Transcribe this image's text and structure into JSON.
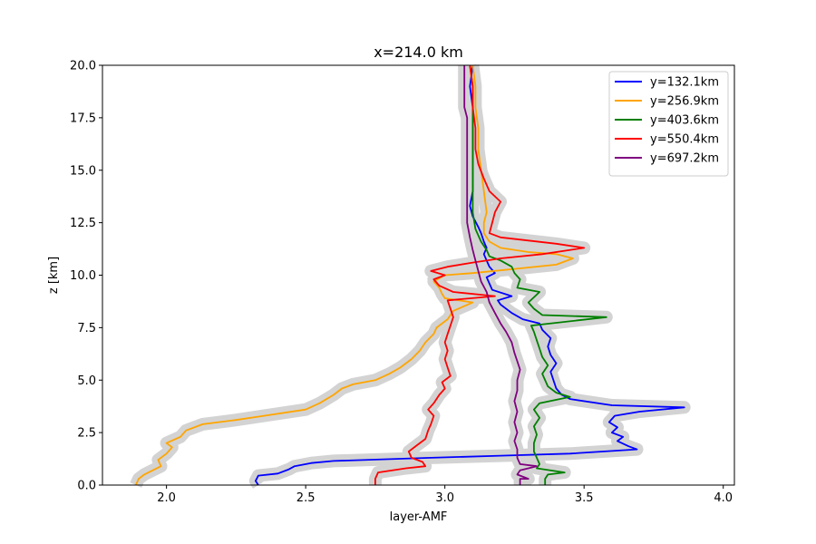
{
  "chart_data": {
    "type": "line",
    "title": "x=214.0 km",
    "xlabel": "layer-AMF",
    "ylabel": "z [km]",
    "xlim": [
      1.77,
      4.04
    ],
    "ylim": [
      0,
      20
    ],
    "xticks": [
      2.0,
      2.5,
      3.0,
      3.5,
      4.0
    ],
    "xtick_labels": [
      "2.0",
      "2.5",
      "3.0",
      "3.5",
      "4.0"
    ],
    "yticks": [
      0,
      2.5,
      5,
      7.5,
      10,
      12.5,
      15,
      17.5,
      20
    ],
    "ytick_labels": [
      "0.0",
      "2.5",
      "5.0",
      "7.5",
      "10.0",
      "12.5",
      "15.0",
      "17.5",
      "20.0"
    ],
    "grid": false,
    "legend_position": "top-right",
    "band_color": "#d3d3d3",
    "series": [
      {
        "name": "y=132.1km",
        "color": "#0000ff",
        "points": [
          [
            2.33,
            0.0
          ],
          [
            2.32,
            0.2
          ],
          [
            2.33,
            0.45
          ],
          [
            2.4,
            0.55
          ],
          [
            2.44,
            0.75
          ],
          [
            2.46,
            0.9
          ],
          [
            2.52,
            1.05
          ],
          [
            2.6,
            1.15
          ],
          [
            2.95,
            1.3
          ],
          [
            3.2,
            1.4
          ],
          [
            3.45,
            1.5
          ],
          [
            3.69,
            1.7
          ],
          [
            3.66,
            1.85
          ],
          [
            3.62,
            2.1
          ],
          [
            3.64,
            2.3
          ],
          [
            3.6,
            2.5
          ],
          [
            3.62,
            2.75
          ],
          [
            3.59,
            3.0
          ],
          [
            3.61,
            3.3
          ],
          [
            3.7,
            3.5
          ],
          [
            3.86,
            3.7
          ],
          [
            3.6,
            3.8
          ],
          [
            3.45,
            4.1
          ],
          [
            3.42,
            4.3
          ],
          [
            3.4,
            4.6
          ],
          [
            3.39,
            5.0
          ],
          [
            3.38,
            5.4
          ],
          [
            3.4,
            5.8
          ],
          [
            3.38,
            6.2
          ],
          [
            3.37,
            6.6
          ],
          [
            3.38,
            7.0
          ],
          [
            3.35,
            7.4
          ],
          [
            3.34,
            7.7
          ],
          [
            3.28,
            7.9
          ],
          [
            3.24,
            8.2
          ],
          [
            3.2,
            8.6
          ],
          [
            3.19,
            8.8
          ],
          [
            3.24,
            9.0
          ],
          [
            3.17,
            9.3
          ],
          [
            3.16,
            9.6
          ],
          [
            3.15,
            9.9
          ],
          [
            3.18,
            10.1
          ],
          [
            3.16,
            10.4
          ],
          [
            3.15,
            10.7
          ],
          [
            3.14,
            11.0
          ],
          [
            3.15,
            11.3
          ],
          [
            3.14,
            11.6
          ],
          [
            3.13,
            12.0
          ],
          [
            3.12,
            12.3
          ],
          [
            3.1,
            12.8
          ],
          [
            3.09,
            13.3
          ],
          [
            3.1,
            14.0
          ],
          [
            3.1,
            15.0
          ],
          [
            3.1,
            16.0
          ],
          [
            3.1,
            17.0
          ],
          [
            3.1,
            18.0
          ],
          [
            3.09,
            19.0
          ],
          [
            3.1,
            20.0
          ]
        ]
      },
      {
        "name": "y=256.9km",
        "color": "#ffa500",
        "points": [
          [
            1.89,
            0.0
          ],
          [
            1.9,
            0.3
          ],
          [
            1.92,
            0.5
          ],
          [
            1.95,
            0.7
          ],
          [
            1.98,
            0.9
          ],
          [
            1.97,
            1.2
          ],
          [
            2.0,
            1.5
          ],
          [
            2.02,
            1.8
          ],
          [
            2.0,
            2.0
          ],
          [
            2.05,
            2.3
          ],
          [
            2.07,
            2.6
          ],
          [
            2.13,
            2.9
          ],
          [
            2.25,
            3.1
          ],
          [
            2.35,
            3.3
          ],
          [
            2.5,
            3.6
          ],
          [
            2.55,
            3.9
          ],
          [
            2.6,
            4.3
          ],
          [
            2.63,
            4.6
          ],
          [
            2.67,
            4.8
          ],
          [
            2.75,
            5.0
          ],
          [
            2.8,
            5.3
          ],
          [
            2.84,
            5.6
          ],
          [
            2.88,
            6.0
          ],
          [
            2.91,
            6.4
          ],
          [
            2.93,
            6.8
          ],
          [
            2.96,
            7.2
          ],
          [
            2.97,
            7.5
          ],
          [
            3.01,
            7.9
          ],
          [
            3.03,
            8.3
          ],
          [
            3.1,
            8.7
          ],
          [
            3.0,
            8.9
          ],
          [
            2.99,
            9.1
          ],
          [
            2.98,
            9.4
          ],
          [
            2.96,
            9.7
          ],
          [
            3.0,
            10.0
          ],
          [
            3.1,
            10.1
          ],
          [
            3.25,
            10.3
          ],
          [
            3.4,
            10.5
          ],
          [
            3.46,
            10.8
          ],
          [
            3.4,
            11.0
          ],
          [
            3.3,
            11.1
          ],
          [
            3.2,
            11.3
          ],
          [
            3.16,
            11.6
          ],
          [
            3.14,
            12.0
          ],
          [
            3.14,
            12.5
          ],
          [
            3.15,
            13.0
          ],
          [
            3.14,
            14.0
          ],
          [
            3.13,
            15.0
          ],
          [
            3.12,
            16.0
          ],
          [
            3.12,
            17.0
          ],
          [
            3.11,
            18.0
          ],
          [
            3.11,
            19.0
          ],
          [
            3.1,
            20.0
          ]
        ]
      },
      {
        "name": "y=403.6km",
        "color": "#008000",
        "points": [
          [
            3.36,
            0.0
          ],
          [
            3.36,
            0.3
          ],
          [
            3.37,
            0.5
          ],
          [
            3.43,
            0.6
          ],
          [
            3.33,
            0.8
          ],
          [
            3.34,
            1.0
          ],
          [
            3.33,
            1.3
          ],
          [
            3.32,
            1.6
          ],
          [
            3.32,
            2.0
          ],
          [
            3.33,
            2.4
          ],
          [
            3.32,
            2.8
          ],
          [
            3.34,
            3.2
          ],
          [
            3.32,
            3.6
          ],
          [
            3.34,
            3.9
          ],
          [
            3.45,
            4.2
          ],
          [
            3.4,
            4.4
          ],
          [
            3.37,
            4.7
          ],
          [
            3.36,
            5.0
          ],
          [
            3.35,
            5.3
          ],
          [
            3.37,
            5.7
          ],
          [
            3.35,
            6.1
          ],
          [
            3.34,
            6.5
          ],
          [
            3.33,
            6.9
          ],
          [
            3.32,
            7.3
          ],
          [
            3.31,
            7.6
          ],
          [
            3.58,
            8.0
          ],
          [
            3.35,
            8.1
          ],
          [
            3.32,
            8.4
          ],
          [
            3.3,
            8.7
          ],
          [
            3.34,
            9.2
          ],
          [
            3.26,
            9.4
          ],
          [
            3.27,
            9.8
          ],
          [
            3.25,
            10.1
          ],
          [
            3.24,
            10.4
          ],
          [
            3.2,
            10.7
          ],
          [
            3.16,
            10.9
          ],
          [
            3.15,
            11.2
          ],
          [
            3.13,
            11.6
          ],
          [
            3.11,
            12.2
          ],
          [
            3.1,
            13.0
          ],
          [
            3.1,
            14.0
          ],
          [
            3.1,
            15.0
          ],
          [
            3.1,
            16.0
          ],
          [
            3.1,
            17.0
          ],
          [
            3.1,
            18.0
          ],
          [
            3.1,
            19.0
          ],
          [
            3.09,
            20.0
          ]
        ]
      },
      {
        "name": "y=550.4km",
        "color": "#ff0000",
        "points": [
          [
            2.75,
            0.0
          ],
          [
            2.75,
            0.3
          ],
          [
            2.76,
            0.6
          ],
          [
            2.86,
            0.8
          ],
          [
            2.93,
            0.9
          ],
          [
            2.92,
            1.1
          ],
          [
            2.88,
            1.3
          ],
          [
            2.87,
            1.6
          ],
          [
            2.9,
            1.9
          ],
          [
            2.93,
            2.2
          ],
          [
            2.94,
            2.6
          ],
          [
            2.95,
            2.9
          ],
          [
            2.96,
            3.3
          ],
          [
            2.94,
            3.6
          ],
          [
            2.96,
            3.9
          ],
          [
            2.98,
            4.3
          ],
          [
            3.0,
            4.6
          ],
          [
            2.99,
            4.9
          ],
          [
            3.02,
            5.2
          ],
          [
            3.01,
            5.6
          ],
          [
            3.0,
            6.0
          ],
          [
            3.01,
            6.4
          ],
          [
            3.0,
            6.8
          ],
          [
            3.01,
            7.2
          ],
          [
            3.02,
            7.6
          ],
          [
            3.03,
            8.0
          ],
          [
            3.02,
            8.4
          ],
          [
            3.01,
            8.8
          ],
          [
            3.18,
            9.0
          ],
          [
            3.03,
            9.2
          ],
          [
            2.98,
            9.5
          ],
          [
            2.96,
            9.8
          ],
          [
            3.0,
            10.0
          ],
          [
            2.95,
            10.2
          ],
          [
            3.01,
            10.4
          ],
          [
            3.1,
            10.6
          ],
          [
            3.2,
            10.8
          ],
          [
            3.35,
            11.0
          ],
          [
            3.5,
            11.3
          ],
          [
            3.4,
            11.5
          ],
          [
            3.2,
            11.8
          ],
          [
            3.16,
            12.0
          ],
          [
            3.17,
            12.5
          ],
          [
            3.18,
            13.0
          ],
          [
            3.2,
            13.5
          ],
          [
            3.16,
            14.0
          ],
          [
            3.14,
            14.6
          ],
          [
            3.12,
            15.3
          ],
          [
            3.11,
            16.0
          ],
          [
            3.11,
            17.0
          ],
          [
            3.1,
            18.0
          ],
          [
            3.1,
            19.0
          ],
          [
            3.09,
            20.0
          ]
        ]
      },
      {
        "name": "y=697.2km",
        "color": "#800080",
        "points": [
          [
            3.27,
            0.0
          ],
          [
            3.27,
            0.3
          ],
          [
            3.3,
            0.3
          ],
          [
            3.26,
            0.5
          ],
          [
            3.27,
            0.7
          ],
          [
            3.33,
            0.9
          ],
          [
            3.27,
            1.0
          ],
          [
            3.26,
            1.3
          ],
          [
            3.26,
            1.7
          ],
          [
            3.25,
            2.1
          ],
          [
            3.26,
            2.5
          ],
          [
            3.25,
            3.0
          ],
          [
            3.26,
            3.5
          ],
          [
            3.25,
            4.0
          ],
          [
            3.26,
            4.5
          ],
          [
            3.26,
            5.0
          ],
          [
            3.27,
            5.5
          ],
          [
            3.26,
            5.9
          ],
          [
            3.25,
            6.3
          ],
          [
            3.24,
            6.8
          ],
          [
            3.22,
            7.3
          ],
          [
            3.2,
            7.7
          ],
          [
            3.18,
            8.2
          ],
          [
            3.16,
            8.7
          ],
          [
            3.15,
            9.2
          ],
          [
            3.13,
            9.7
          ],
          [
            3.12,
            10.2
          ],
          [
            3.11,
            10.7
          ],
          [
            3.1,
            11.2
          ],
          [
            3.09,
            11.8
          ],
          [
            3.08,
            12.5
          ],
          [
            3.08,
            13.5
          ],
          [
            3.08,
            14.5
          ],
          [
            3.08,
            15.5
          ],
          [
            3.08,
            16.5
          ],
          [
            3.08,
            17.5
          ],
          [
            3.07,
            18.0
          ],
          [
            3.07,
            18.5
          ],
          [
            3.07,
            19.5
          ],
          [
            3.07,
            20.0
          ]
        ]
      }
    ]
  }
}
